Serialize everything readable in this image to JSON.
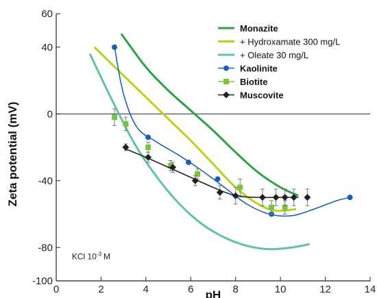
{
  "chart_data": {
    "type": "line",
    "xlabel": "pH",
    "ylabel": "Zeta potential (mV)",
    "xlim": [
      0,
      14
    ],
    "ylim": [
      -100,
      60
    ],
    "xticks": [
      "0",
      "2",
      "4",
      "6",
      "8",
      "10",
      "12",
      "14"
    ],
    "yticks": [
      "60",
      "40",
      "0",
      "-40",
      "-80",
      "-100"
    ],
    "ytick_values": [
      60,
      40,
      0,
      -40,
      -80,
      -100
    ],
    "annotation": "KCl 10",
    "annotation_sup": "-3",
    "annotation_unit": "M",
    "legend_position": "top-right",
    "curves": [
      {
        "name": "Monazite",
        "color": "#2ea043",
        "bold": true,
        "x": [
          2.9,
          4,
          5,
          6,
          7,
          8,
          9,
          10,
          10.8
        ],
        "y": [
          48,
          28,
          14,
          2,
          -10,
          -23,
          -35,
          -44,
          -49
        ]
      },
      {
        "name": "+ Hydroxamate 300 mg/L",
        "color": "#b5d21e",
        "bold": false,
        "x": [
          1.7,
          3,
          4,
          5,
          6,
          7,
          8,
          9,
          9.8,
          10.7
        ],
        "y": [
          40,
          23,
          10,
          -3,
          -16,
          -30,
          -44,
          -54,
          -58,
          -57
        ]
      },
      {
        "name": "+ Oleate 30 mg/L",
        "color": "#5fc1a8",
        "bold": false,
        "x": [
          1.5,
          2.5,
          3.5,
          4.5,
          5.5,
          6.5,
          7.5,
          8.5,
          9.5,
          10.5,
          11.3
        ],
        "y": [
          36,
          8,
          -18,
          -38,
          -54,
          -66,
          -74,
          -79,
          -81,
          -80,
          -78
        ]
      }
    ],
    "series": [
      {
        "name": "Kaolinite",
        "color": "#1f5fb0",
        "marker": "circle",
        "x": [
          2.6,
          4.1,
          5.9,
          7.2,
          9.6,
          13.1
        ],
        "y": [
          40,
          -14,
          -29,
          -39,
          -60,
          -50
        ],
        "err": [
          0,
          0,
          0,
          0,
          0,
          0
        ],
        "fit_x": [
          2.6,
          3,
          3.6,
          4.5,
          5.5,
          6.5,
          7.5,
          8.5,
          9.5,
          10.5,
          11.5,
          12.5,
          13.1
        ],
        "fit_y": [
          40,
          12,
          -8,
          -17,
          -25,
          -34,
          -44,
          -54,
          -60,
          -61,
          -57,
          -52,
          -50
        ]
      },
      {
        "name": "Biotite",
        "color": "#7cc242",
        "marker": "square",
        "x": [
          2.6,
          3.1,
          4.1,
          5.1,
          6.3,
          8.2,
          9.6,
          10.2
        ],
        "y": [
          -2,
          -6,
          -20,
          -31,
          -36,
          -44,
          -56,
          -56
        ],
        "err": [
          5,
          4,
          3,
          3,
          3,
          5,
          4,
          4
        ]
      },
      {
        "name": "Muscovite",
        "color": "#222222",
        "marker": "diamond",
        "x": [
          3.1,
          4.1,
          5.2,
          6.2,
          7.3,
          8.0,
          9.2,
          9.8,
          10.2,
          10.6,
          11.2
        ],
        "y": [
          -20,
          -26,
          -32,
          -40,
          -47,
          -49,
          -50,
          -50,
          -50,
          -50,
          -50
        ],
        "err": [
          2,
          3,
          3,
          3,
          4,
          5,
          5,
          5,
          5,
          5,
          5
        ],
        "fit_x": [
          3.1,
          4,
          5,
          6,
          7,
          8,
          9,
          10,
          10.8
        ],
        "fit_y": [
          -21,
          -26,
          -32,
          -38,
          -44,
          -49,
          -50,
          -50,
          -50
        ]
      }
    ]
  }
}
